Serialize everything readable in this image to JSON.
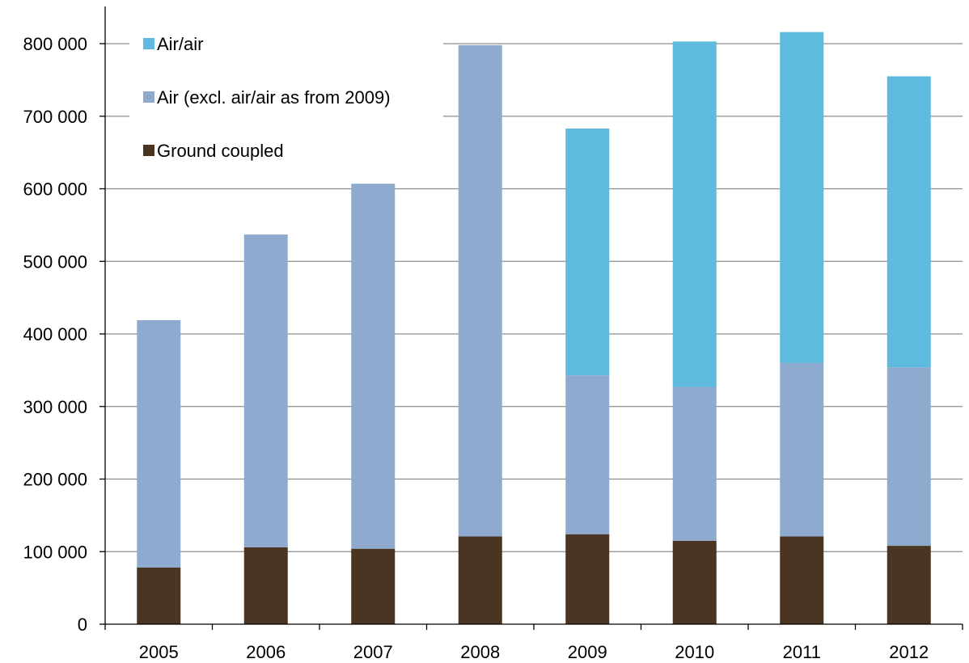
{
  "colors": {
    "ground_coupled": "#4a3522",
    "air": "#8eabcf",
    "air_air": "#5ebbdf",
    "grid": "#8c8c8c",
    "axis": "#000000"
  },
  "chart_data": {
    "type": "bar",
    "stacked": true,
    "title": "",
    "xlabel": "",
    "ylabel": "",
    "categories": [
      "2005",
      "2006",
      "2007",
      "2008",
      "2009",
      "2010",
      "2011",
      "2012"
    ],
    "series": [
      {
        "name": "Ground coupled",
        "color_key": "ground_coupled",
        "values": [
          78000,
          106000,
          104000,
          121000,
          124000,
          115000,
          121000,
          108000
        ]
      },
      {
        "name": "Air (excl. air/air as from 2009)",
        "color_key": "air",
        "values": [
          341000,
          431000,
          503000,
          677000,
          219000,
          212000,
          239000,
          246000
        ]
      },
      {
        "name": "Air/air",
        "color_key": "air_air",
        "values": [
          0,
          0,
          0,
          0,
          340000,
          476000,
          456000,
          401000
        ]
      }
    ],
    "ylim": [
      0,
      800000
    ],
    "yticks": [
      0,
      100000,
      200000,
      300000,
      400000,
      500000,
      600000,
      700000,
      800000
    ],
    "ytick_labels": [
      "0",
      "100 000",
      "200 000",
      "300 000",
      "400 000",
      "500 000",
      "600 000",
      "700 000",
      "800 000"
    ],
    "grid": true,
    "legend": {
      "placement": "top-left",
      "order": [
        "Air/air",
        "Air (excl. air/air as from 2009)",
        "Ground coupled"
      ]
    }
  }
}
